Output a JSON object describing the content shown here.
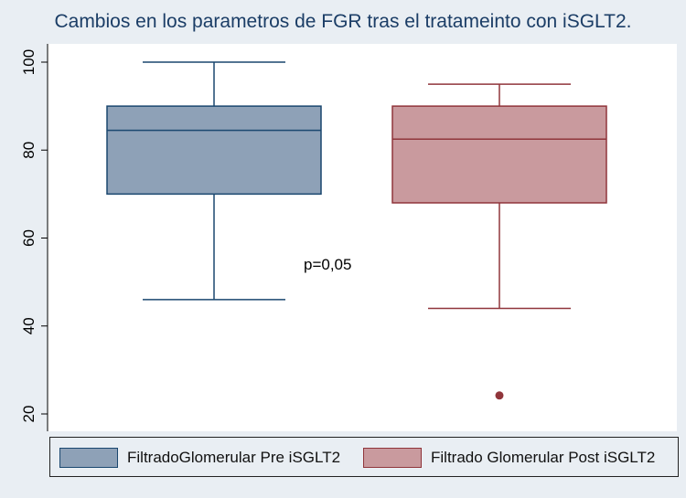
{
  "chart_data": {
    "type": "box",
    "title": "Cambios en los parametros de FGR tras el tratameinto con iSGLT2.",
    "xlabel": "",
    "ylabel": "",
    "ylim": [
      20,
      100
    ],
    "yticks": [
      20,
      40,
      60,
      80,
      100
    ],
    "grid": false,
    "legend_position": "bottom",
    "annotation": "p=0,05",
    "series": [
      {
        "name": "FiltradoGlomerular Pre iSGLT2",
        "min": 46,
        "q1": 70,
        "median": 84.5,
        "q3": 90,
        "max": 100,
        "outliers": [],
        "fill": "#8ea1b7",
        "stroke": "#1a476f"
      },
      {
        "name": "Filtrado Glomerular Post iSGLT2",
        "min": 44,
        "q1": 68,
        "median": 82.5,
        "q3": 90,
        "max": 95,
        "outliers": [
          24.2
        ],
        "fill": "#c99a9e",
        "stroke": "#90353b"
      }
    ]
  }
}
